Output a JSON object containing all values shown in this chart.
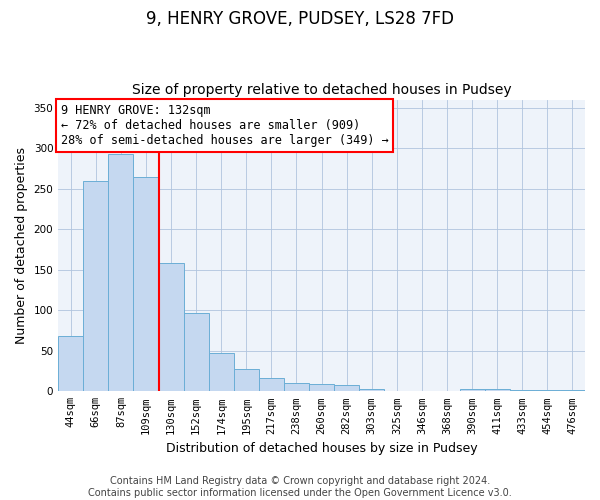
{
  "title_line1": "9, HENRY GROVE, PUDSEY, LS28 7FD",
  "title_line2": "Size of property relative to detached houses in Pudsey",
  "xlabel": "Distribution of detached houses by size in Pudsey",
  "ylabel": "Number of detached properties",
  "categories": [
    "44sqm",
    "66sqm",
    "87sqm",
    "109sqm",
    "130sqm",
    "152sqm",
    "174sqm",
    "195sqm",
    "217sqm",
    "238sqm",
    "260sqm",
    "282sqm",
    "303sqm",
    "325sqm",
    "346sqm",
    "368sqm",
    "390sqm",
    "411sqm",
    "433sqm",
    "454sqm",
    "476sqm"
  ],
  "values": [
    68,
    260,
    293,
    265,
    158,
    97,
    47,
    27,
    17,
    10,
    9,
    8,
    3,
    0,
    0,
    0,
    3,
    3,
    2,
    2,
    2
  ],
  "bar_color": "#c5d8f0",
  "bar_edge_color": "#6baed6",
  "annotation_text": "9 HENRY GROVE: 132sqm\n← 72% of detached houses are smaller (909)\n28% of semi-detached houses are larger (349) →",
  "annotation_box_color": "white",
  "annotation_box_edge_color": "red",
  "vline_color": "red",
  "ylim": [
    0,
    360
  ],
  "yticks": [
    0,
    50,
    100,
    150,
    200,
    250,
    300,
    350
  ],
  "grid_color": "#b0c4de",
  "background_color": "#eef3fa",
  "footer_text": "Contains HM Land Registry data © Crown copyright and database right 2024.\nContains public sector information licensed under the Open Government Licence v3.0.",
  "title_fontsize": 12,
  "subtitle_fontsize": 10,
  "axis_label_fontsize": 9,
  "tick_fontsize": 7.5,
  "annotation_fontsize": 8.5,
  "footer_fontsize": 7
}
